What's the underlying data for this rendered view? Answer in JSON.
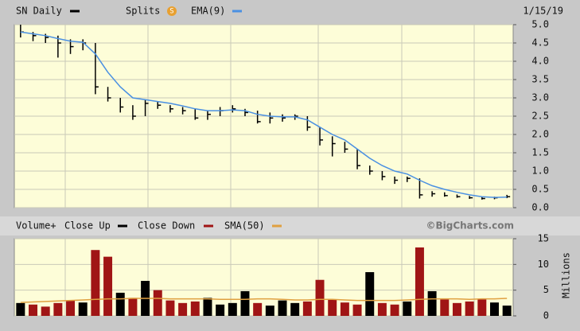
{
  "chart_data": [
    {
      "type": "ohlc",
      "title": "SN Daily",
      "splits_label": "Splits",
      "date": "1/15/19",
      "ylim": [
        0,
        5
      ],
      "yticks": [
        {
          "value": 0,
          "label": "0.0"
        },
        0.5,
        {
          "value": 1,
          "label": "1.0"
        },
        1.5,
        {
          "value": 2,
          "label": "2.0"
        },
        2.5,
        {
          "value": 3,
          "label": "3.0"
        },
        3.5,
        {
          "value": 4,
          "label": "4.0"
        },
        4.5,
        {
          "value": 5,
          "label": "5.0"
        }
      ],
      "grid": true,
      "series": [
        {
          "name": "SN Daily",
          "color": "#000000",
          "high": [
            5.0,
            4.8,
            4.75,
            4.7,
            4.6,
            4.6,
            4.5,
            3.3,
            3.0,
            2.8,
            2.95,
            2.9,
            2.8,
            2.75,
            2.7,
            2.65,
            2.75,
            2.8,
            2.7,
            2.65,
            2.6,
            2.55,
            2.55,
            2.5,
            2.2,
            1.95,
            1.8,
            1.6,
            1.15,
            1.0,
            0.85,
            0.85,
            0.8,
            0.45,
            0.42,
            0.36,
            0.32,
            0.3,
            0.3,
            0.35
          ],
          "low": [
            4.65,
            4.55,
            4.5,
            4.1,
            4.2,
            4.3,
            3.1,
            2.9,
            2.6,
            2.4,
            2.5,
            2.7,
            2.6,
            2.55,
            2.4,
            2.4,
            2.5,
            2.6,
            2.5,
            2.3,
            2.3,
            2.35,
            2.4,
            2.1,
            1.7,
            1.4,
            1.5,
            1.05,
            0.9,
            0.75,
            0.65,
            0.7,
            0.25,
            0.3,
            0.3,
            0.27,
            0.24,
            0.22,
            0.23,
            0.26
          ],
          "values": [
            4.8,
            4.7,
            4.65,
            4.5,
            4.4,
            4.5,
            3.3,
            3.0,
            2.75,
            2.5,
            2.85,
            2.8,
            2.7,
            2.65,
            2.45,
            2.55,
            2.65,
            2.7,
            2.6,
            2.35,
            2.45,
            2.45,
            2.5,
            2.2,
            1.85,
            1.75,
            1.6,
            1.15,
            1.0,
            0.85,
            0.75,
            0.8,
            0.35,
            0.38,
            0.33,
            0.3,
            0.27,
            0.25,
            0.27,
            0.3
          ]
        },
        {
          "name": "EMA(9)",
          "color": "#4a90e2",
          "line": true,
          "values": [
            4.8,
            4.75,
            4.7,
            4.62,
            4.55,
            4.52,
            4.2,
            3.7,
            3.3,
            3.0,
            2.95,
            2.9,
            2.85,
            2.78,
            2.7,
            2.65,
            2.65,
            2.67,
            2.65,
            2.55,
            2.5,
            2.48,
            2.48,
            2.4,
            2.2,
            2.0,
            1.85,
            1.6,
            1.35,
            1.15,
            1.0,
            0.92,
            0.75,
            0.6,
            0.5,
            0.42,
            0.35,
            0.3,
            0.28,
            0.29
          ]
        }
      ]
    },
    {
      "type": "bar",
      "title": "Volume+",
      "brand": "©BigCharts.com",
      "y_label": "Millions",
      "ylim": [
        0,
        15
      ],
      "yticks": [
        0,
        5,
        10,
        15
      ],
      "grid": true,
      "series": [
        {
          "name": "Close Up",
          "color": "#000000",
          "values": [
            2.5,
            null,
            null,
            null,
            null,
            2.6,
            null,
            null,
            4.5,
            null,
            6.8,
            null,
            null,
            null,
            null,
            3.5,
            2.2,
            2.5,
            4.8,
            null,
            2.0,
            3.0,
            2.5,
            null,
            null,
            null,
            null,
            null,
            8.5,
            null,
            null,
            2.8,
            null,
            4.8,
            null,
            null,
            null,
            null,
            2.6,
            2.0
          ]
        },
        {
          "name": "Close Down",
          "color": "#a01515",
          "values": [
            null,
            2.2,
            1.8,
            2.5,
            3.0,
            null,
            12.8,
            11.5,
            null,
            3.5,
            null,
            5.0,
            3.0,
            2.5,
            2.8,
            null,
            null,
            null,
            null,
            2.5,
            null,
            null,
            null,
            2.8,
            7.0,
            3.2,
            2.6,
            2.2,
            null,
            2.5,
            2.2,
            null,
            13.3,
            null,
            3.2,
            2.5,
            2.8,
            3.2,
            null,
            null
          ]
        },
        {
          "name": "SMA(50)",
          "color": "#e0a040",
          "line": true,
          "values": [
            2.6,
            2.7,
            2.8,
            2.9,
            3.0,
            3.1,
            3.2,
            3.3,
            3.3,
            3.4,
            3.4,
            3.4,
            3.3,
            3.3,
            3.3,
            3.3,
            3.2,
            3.2,
            3.2,
            3.3,
            3.3,
            3.2,
            3.1,
            3.1,
            3.2,
            3.2,
            3.1,
            3.0,
            3.0,
            3.0,
            3.0,
            3.1,
            3.2,
            3.3,
            3.3,
            3.3,
            3.2,
            3.3,
            3.3,
            3.4
          ]
        }
      ]
    }
  ]
}
